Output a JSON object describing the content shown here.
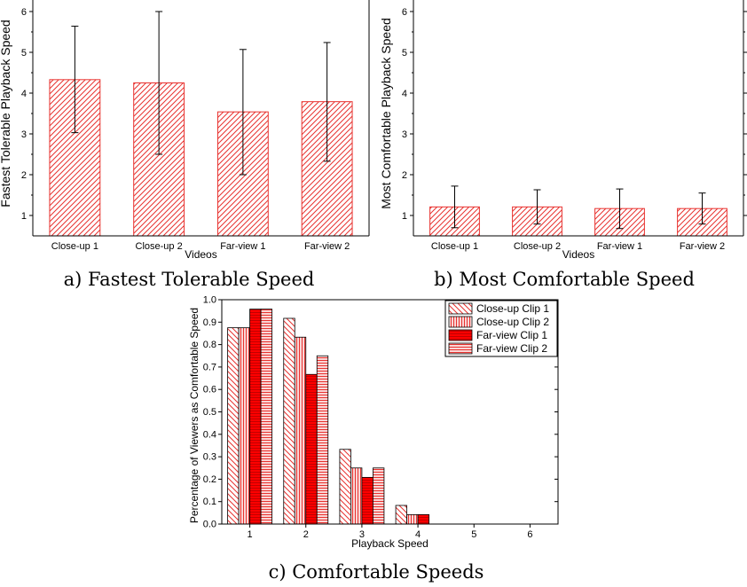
{
  "colors": {
    "bar_stroke": "#e8322f",
    "bar_fill": "#ffffff",
    "hatch": "#e8322f",
    "dark_stroke": "#000000",
    "red_solid": "#ff0000"
  },
  "captions": {
    "a": "a) Fastest Tolerable Speed",
    "b": "b) Most Comfortable Speed",
    "c": "c) Comfortable Speeds"
  },
  "chart_data": [
    {
      "id": "a",
      "type": "bar",
      "ylabel": "Fastest Tolerable Playback Speed",
      "xlabel": "Videos",
      "categories": [
        "Close-up 1",
        "Close-up 2",
        "Far-view 1",
        "Far-view 2"
      ],
      "values": [
        4.33,
        4.25,
        3.54,
        3.79
      ],
      "error_low": [
        3.03,
        2.5,
        2.0,
        2.33
      ],
      "error_high": [
        5.64,
        6.0,
        5.07,
        5.24
      ],
      "ylim": [
        0.5,
        6.5
      ],
      "yticks": [
        1,
        2,
        3,
        4,
        5,
        6
      ]
    },
    {
      "id": "b",
      "type": "bar",
      "ylabel": "Most Comfortable Playback Speed",
      "xlabel": "Videos",
      "categories": [
        "Close-up 1",
        "Close-up 2",
        "Far-view 1",
        "Far-view 2"
      ],
      "values": [
        1.21,
        1.21,
        1.17,
        1.17
      ],
      "error_low": [
        0.7,
        0.79,
        0.68,
        0.79
      ],
      "error_high": [
        1.72,
        1.63,
        1.65,
        1.55
      ],
      "ylim": [
        0.5,
        6.5
      ],
      "yticks": [
        1,
        2,
        3,
        4,
        5,
        6
      ]
    },
    {
      "id": "c",
      "type": "bar",
      "ylabel": "Percentage of Viewers as Comfortable Speed",
      "xlabel": "Playback Speed",
      "categories": [
        "1",
        "2",
        "3",
        "4",
        "5",
        "6"
      ],
      "series": [
        {
          "name": "Close-up Clip 1",
          "values": [
            0.875,
            0.917,
            0.333,
            0.083,
            0,
            0
          ]
        },
        {
          "name": "Close-up Clip 2",
          "values": [
            0.875,
            0.833,
            0.25,
            0.042,
            0,
            0
          ]
        },
        {
          "name": "Far-view Clip 1",
          "values": [
            0.958,
            0.667,
            0.208,
            0.042,
            0,
            0
          ]
        },
        {
          "name": "Far-view Clip 2",
          "values": [
            0.958,
            0.75,
            0.25,
            0,
            0,
            0
          ]
        }
      ],
      "ylim": [
        0,
        1.0
      ],
      "yticks": [
        "0.0",
        "0.1",
        "0.2",
        "0.3",
        "0.4",
        "0.5",
        "0.6",
        "0.7",
        "0.8",
        "0.9",
        "1.0"
      ],
      "xlim": [
        0.5,
        6.5
      ],
      "legend": "top-right"
    }
  ]
}
